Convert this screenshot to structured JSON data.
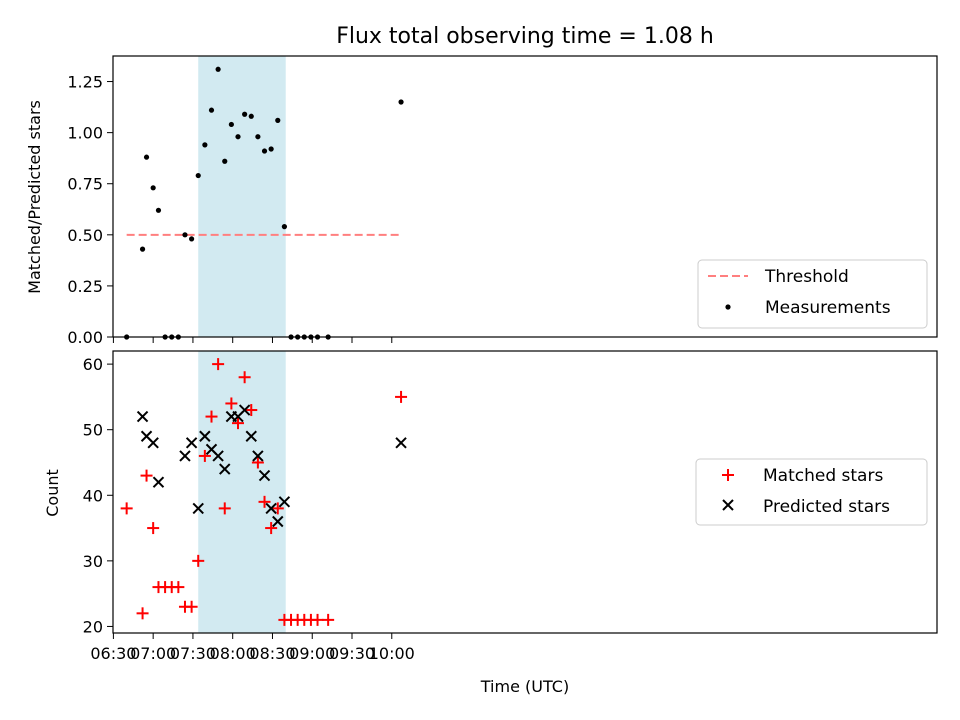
{
  "chart_data": [
    {
      "type": "scatter",
      "title": "Flux total observing time = 1.08 h",
      "xlabel": "",
      "ylabel": "Matched/Predicted stars",
      "ylim": [
        0,
        1.375
      ],
      "yticks": [
        "0.00",
        "0.25",
        "0.50",
        "0.75",
        "1.00",
        "1.25"
      ],
      "shaded_span": {
        "start": "07:34",
        "end": "08:40",
        "color": "#add8e6"
      },
      "legend": {
        "placement": "bottom-right"
      },
      "series": [
        {
          "name": "Threshold",
          "style": "dashed-line",
          "color": "#ff7f7f",
          "x": [
            "06:40",
            "10:07"
          ],
          "y": [
            0.5,
            0.5
          ]
        },
        {
          "name": "Measurements",
          "style": "dot",
          "color": "#000000",
          "x": [
            "06:40",
            "06:52",
            "06:55",
            "07:00",
            "07:04",
            "07:09",
            "07:14",
            "07:19",
            "07:24",
            "07:29",
            "07:34",
            "07:39",
            "07:44",
            "07:49",
            "07:54",
            "07:59",
            "08:04",
            "08:09",
            "08:14",
            "08:19",
            "08:24",
            "08:29",
            "08:34",
            "08:39",
            "08:44",
            "08:49",
            "08:54",
            "08:59",
            "09:04",
            "09:12",
            "10:07"
          ],
          "y": [
            0.0,
            0.43,
            0.88,
            0.73,
            0.62,
            0.0,
            0.0,
            0.0,
            0.5,
            0.48,
            0.79,
            0.94,
            1.11,
            1.31,
            0.86,
            1.04,
            0.98,
            1.09,
            1.08,
            0.98,
            0.91,
            0.92,
            1.06,
            0.54,
            0.0,
            0.0,
            0.0,
            0.0,
            0.0,
            0.0,
            1.15
          ]
        }
      ]
    },
    {
      "type": "scatter",
      "title": "",
      "xlabel": "Time (UTC)",
      "ylabel": "Count",
      "ylim": [
        19,
        62
      ],
      "yticks": [
        "20",
        "30",
        "40",
        "50",
        "60"
      ],
      "xticks": [
        "06:30",
        "07:00",
        "07:30",
        "08:00",
        "08:30",
        "09:00",
        "09:30",
        "10:00"
      ],
      "shaded_span": {
        "start": "07:34",
        "end": "08:40",
        "color": "#add8e6"
      },
      "legend": {
        "placement": "right"
      },
      "series": [
        {
          "name": "Matched stars",
          "style": "plus",
          "color": "#ff0000",
          "x": [
            "06:40",
            "06:52",
            "06:55",
            "07:00",
            "07:04",
            "07:09",
            "07:14",
            "07:19",
            "07:24",
            "07:29",
            "07:34",
            "07:39",
            "07:44",
            "07:49",
            "07:54",
            "07:59",
            "08:04",
            "08:09",
            "08:14",
            "08:19",
            "08:24",
            "08:29",
            "08:34",
            "08:39",
            "08:44",
            "08:49",
            "08:54",
            "08:59",
            "09:04",
            "09:12",
            "10:07"
          ],
          "y": [
            38,
            22,
            43,
            35,
            26,
            26,
            26,
            26,
            23,
            23,
            30,
            46,
            52,
            60,
            38,
            54,
            51,
            58,
            53,
            45,
            39,
            35,
            38,
            21,
            21,
            21,
            21,
            21,
            21,
            21,
            55
          ]
        },
        {
          "name": "Predicted stars",
          "style": "x",
          "color": "#000000",
          "x": [
            "06:52",
            "06:55",
            "07:00",
            "07:04",
            "07:24",
            "07:29",
            "07:34",
            "07:39",
            "07:44",
            "07:49",
            "07:54",
            "07:59",
            "08:04",
            "08:09",
            "08:14",
            "08:19",
            "08:24",
            "08:29",
            "08:34",
            "08:39",
            "10:07"
          ],
          "y": [
            52,
            49,
            48,
            42,
            46,
            48,
            38,
            49,
            47,
            46,
            44,
            52,
            52,
            53,
            49,
            46,
            43,
            38,
            36,
            39,
            48
          ]
        }
      ]
    }
  ]
}
